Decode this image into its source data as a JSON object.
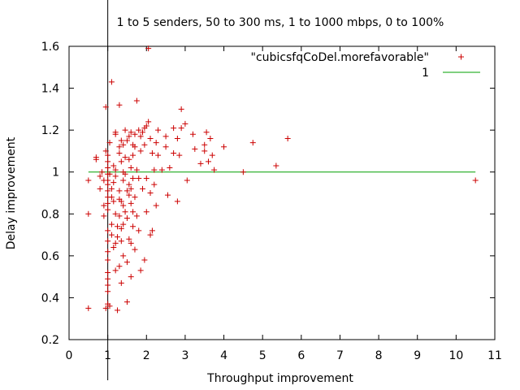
{
  "chart_data": {
    "type": "scatter",
    "title": "1 to 5 senders, 50 to 300 ms, 1 to 1000 mbps, 0 to 100%",
    "xlabel": "Throughput improvement",
    "ylabel": "Delay improvement",
    "xlim": [
      0,
      11
    ],
    "ylim": [
      0.2,
      1.6
    ],
    "x_ticks": [
      "0",
      "1",
      "2",
      "3",
      "4",
      "5",
      "6",
      "7",
      "8",
      "9",
      "10",
      "11"
    ],
    "y_ticks": [
      "0.2",
      "0.4",
      "0.6",
      "0.8",
      "1",
      "1.2",
      "1.4",
      "1.6"
    ],
    "grid": false,
    "legend_position": "top-right",
    "vertical_line_x": 1,
    "series": [
      {
        "name": "\"cubicsfqCoDel.morefavorable\"",
        "kind": "points",
        "marker": "+",
        "color": "#cc0000",
        "points": [
          [
            0.5,
            0.35
          ],
          [
            0.5,
            0.8
          ],
          [
            0.5,
            0.96
          ],
          [
            0.7,
            1.07
          ],
          [
            0.7,
            1.06
          ],
          [
            0.8,
            0.98
          ],
          [
            0.8,
            0.92
          ],
          [
            0.85,
            1.0
          ],
          [
            0.9,
            0.84
          ],
          [
            0.9,
            0.79
          ],
          [
            0.9,
            0.96
          ],
          [
            0.95,
            1.1
          ],
          [
            0.95,
            0.35
          ],
          [
            0.95,
            1.31
          ],
          [
            1.0,
            1.08
          ],
          [
            1.0,
            1.05
          ],
          [
            1.0,
            1.02
          ],
          [
            1.0,
            0.99
          ],
          [
            1.0,
            0.96
          ],
          [
            1.0,
            0.94
          ],
          [
            1.0,
            0.91
          ],
          [
            1.0,
            0.88
          ],
          [
            1.0,
            0.85
          ],
          [
            1.0,
            0.82
          ],
          [
            1.0,
            0.72
          ],
          [
            1.0,
            0.67
          ],
          [
            1.0,
            0.62
          ],
          [
            1.0,
            0.58
          ],
          [
            1.0,
            0.52
          ],
          [
            1.0,
            0.49
          ],
          [
            1.0,
            0.46
          ],
          [
            1.0,
            0.43
          ],
          [
            1.0,
            0.37
          ],
          [
            1.05,
            0.36
          ],
          [
            1.05,
            1.14
          ],
          [
            1.05,
            0.99
          ],
          [
            1.1,
            0.92
          ],
          [
            1.1,
            0.88
          ],
          [
            1.1,
            0.75
          ],
          [
            1.1,
            0.7
          ],
          [
            1.1,
            1.43
          ],
          [
            1.15,
            1.03
          ],
          [
            1.15,
            0.95
          ],
          [
            1.15,
            0.86
          ],
          [
            1.15,
            0.64
          ],
          [
            1.2,
            1.19
          ],
          [
            1.2,
            1.18
          ],
          [
            1.2,
            1.01
          ],
          [
            1.2,
            0.98
          ],
          [
            1.2,
            0.8
          ],
          [
            1.2,
            0.66
          ],
          [
            1.2,
            0.53
          ],
          [
            1.25,
            0.34
          ],
          [
            1.25,
            0.74
          ],
          [
            1.25,
            0.69
          ],
          [
            1.3,
            1.32
          ],
          [
            1.3,
            1.12
          ],
          [
            1.3,
            1.09
          ],
          [
            1.3,
            0.91
          ],
          [
            1.3,
            0.87
          ],
          [
            1.3,
            0.79
          ],
          [
            1.3,
            0.55
          ],
          [
            1.35,
            1.15
          ],
          [
            1.35,
            1.05
          ],
          [
            1.35,
            0.86
          ],
          [
            1.35,
            0.73
          ],
          [
            1.35,
            0.67
          ],
          [
            1.35,
            0.47
          ],
          [
            1.4,
            1.13
          ],
          [
            1.4,
            1.0
          ],
          [
            1.4,
            0.96
          ],
          [
            1.4,
            0.84
          ],
          [
            1.4,
            0.75
          ],
          [
            1.4,
            0.6
          ],
          [
            1.45,
            1.2
          ],
          [
            1.45,
            1.07
          ],
          [
            1.45,
            0.99
          ],
          [
            1.45,
            0.81
          ],
          [
            1.5,
            1.15
          ],
          [
            1.5,
            0.91
          ],
          [
            1.5,
            0.78
          ],
          [
            1.5,
            0.57
          ],
          [
            1.5,
            0.38
          ],
          [
            1.55,
            1.17
          ],
          [
            1.55,
            1.06
          ],
          [
            1.55,
            0.94
          ],
          [
            1.55,
            0.89
          ],
          [
            1.55,
            0.68
          ],
          [
            1.6,
            1.19
          ],
          [
            1.6,
            1.02
          ],
          [
            1.6,
            0.92
          ],
          [
            1.6,
            0.85
          ],
          [
            1.6,
            0.66
          ],
          [
            1.6,
            0.5
          ],
          [
            1.65,
            1.13
          ],
          [
            1.65,
            1.08
          ],
          [
            1.65,
            0.97
          ],
          [
            1.65,
            0.81
          ],
          [
            1.65,
            0.74
          ],
          [
            1.7,
            1.18
          ],
          [
            1.7,
            1.12
          ],
          [
            1.7,
            0.88
          ],
          [
            1.7,
            0.63
          ],
          [
            1.75,
            1.34
          ],
          [
            1.75,
            1.01
          ],
          [
            1.75,
            0.79
          ],
          [
            1.8,
            1.2
          ],
          [
            1.8,
            0.97
          ],
          [
            1.8,
            0.72
          ],
          [
            1.85,
            1.17
          ],
          [
            1.85,
            1.1
          ],
          [
            1.85,
            0.53
          ],
          [
            1.9,
            1.19
          ],
          [
            1.9,
            0.92
          ],
          [
            1.95,
            1.21
          ],
          [
            1.95,
            1.13
          ],
          [
            1.95,
            0.58
          ],
          [
            2.0,
            1.22
          ],
          [
            2.0,
            0.97
          ],
          [
            2.0,
            0.81
          ],
          [
            2.05,
            1.24
          ],
          [
            2.05,
            1.59
          ],
          [
            2.1,
            1.16
          ],
          [
            2.1,
            0.9
          ],
          [
            2.1,
            0.7
          ],
          [
            2.15,
            1.09
          ],
          [
            2.15,
            0.72
          ],
          [
            2.2,
            1.01
          ],
          [
            2.2,
            0.94
          ],
          [
            2.25,
            1.14
          ],
          [
            2.25,
            0.84
          ],
          [
            2.3,
            1.2
          ],
          [
            2.3,
            1.08
          ],
          [
            2.4,
            1.01
          ],
          [
            2.5,
            1.17
          ],
          [
            2.5,
            1.12
          ],
          [
            2.55,
            0.89
          ],
          [
            2.6,
            1.02
          ],
          [
            2.7,
            1.21
          ],
          [
            2.7,
            1.09
          ],
          [
            2.8,
            1.16
          ],
          [
            2.8,
            0.86
          ],
          [
            2.85,
            1.08
          ],
          [
            2.9,
            1.3
          ],
          [
            2.9,
            1.21
          ],
          [
            3.0,
            1.23
          ],
          [
            3.05,
            0.96
          ],
          [
            3.2,
            1.18
          ],
          [
            3.25,
            1.11
          ],
          [
            3.4,
            1.04
          ],
          [
            3.5,
            1.13
          ],
          [
            3.5,
            1.1
          ],
          [
            3.55,
            1.19
          ],
          [
            3.6,
            1.05
          ],
          [
            3.65,
            1.16
          ],
          [
            3.7,
            1.08
          ],
          [
            3.75,
            1.01
          ],
          [
            4.0,
            1.12
          ],
          [
            4.5,
            1.0
          ],
          [
            4.75,
            1.14
          ],
          [
            5.35,
            1.03
          ],
          [
            5.65,
            1.16
          ],
          [
            10.5,
            0.96
          ]
        ]
      },
      {
        "name": "1",
        "kind": "line",
        "color": "#00a000",
        "x_range": [
          0.5,
          10.5
        ],
        "y": 1
      }
    ]
  }
}
